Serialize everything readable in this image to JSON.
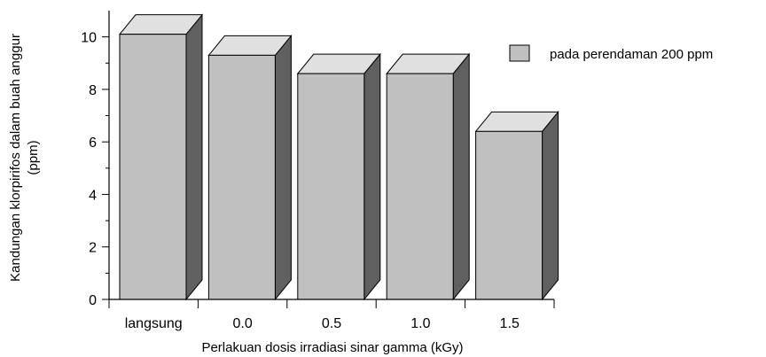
{
  "chart_data": {
    "type": "bar",
    "categories": [
      "langsung",
      "0.0",
      "0.5",
      "1.0",
      "1.5"
    ],
    "series": [
      {
        "name": "pada perendaman 200 ppm",
        "values": [
          10.1,
          9.3,
          8.6,
          8.6,
          6.4
        ]
      }
    ],
    "xlabel": "Perlakuan dosis irradiasi sinar gamma (kGy)",
    "ylabel_lines": [
      "Kandungan klorpirifos dalam buah anggur",
      "(ppm)"
    ],
    "ylim": [
      0,
      11
    ],
    "yticks": [
      0,
      2,
      4,
      6,
      8,
      10
    ],
    "grid": false,
    "legend_position": "top-right",
    "style": "3d-bar",
    "colors": {
      "front": "#c0c0c0",
      "top": "#e0e0e0",
      "side": "#606060",
      "outline": "#000000"
    }
  }
}
